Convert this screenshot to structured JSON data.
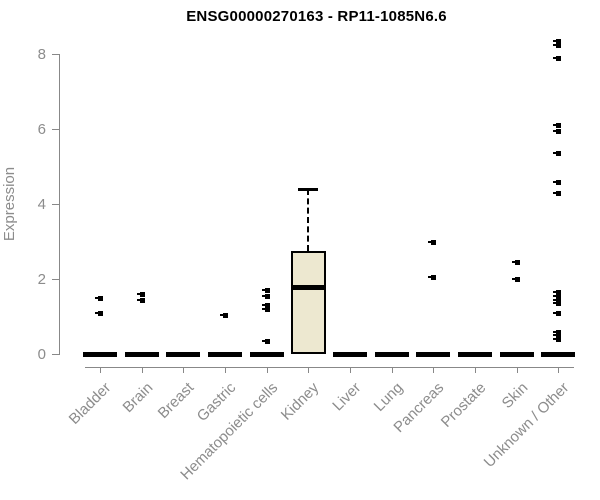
{
  "window": {
    "background": "#ffffff"
  },
  "chart_data": {
    "type": "boxplot",
    "title": "ENSG00000270163 - RP11-1085N6.6",
    "xlabel": "",
    "ylabel": "Expression",
    "ylim": [
      0,
      8.4
    ],
    "yticks": [
      0,
      2,
      4,
      6,
      8
    ],
    "grid": false,
    "legend": null,
    "categories": [
      "Bladder",
      "Brain",
      "Breast",
      "Gastric",
      "Hematopoietic cells",
      "Kidney",
      "Liver",
      "Lung",
      "Pancreas",
      "Prostate",
      "Skin",
      "Unknown / Other"
    ],
    "boxes": [
      {
        "category": "Bladder",
        "median": 0,
        "q1": 0,
        "q3": 0,
        "whisker_low": 0,
        "whisker_high": 0,
        "outliers": [
          1.5,
          1.1
        ]
      },
      {
        "category": "Brain",
        "median": 0,
        "q1": 0,
        "q3": 0,
        "whisker_low": 0,
        "whisker_high": 0,
        "outliers": [
          1.6,
          1.45
        ]
      },
      {
        "category": "Breast",
        "median": 0,
        "q1": 0,
        "q3": 0,
        "whisker_low": 0,
        "whisker_high": 0,
        "outliers": []
      },
      {
        "category": "Gastric",
        "median": 0,
        "q1": 0,
        "q3": 0,
        "whisker_low": 0,
        "whisker_high": 0,
        "outliers": [
          1.05
        ]
      },
      {
        "category": "Hematopoietic cells",
        "median": 0,
        "q1": 0,
        "q3": 0,
        "whisker_low": 0,
        "whisker_high": 0,
        "outliers": [
          1.7,
          1.55,
          1.3,
          1.2,
          0.35
        ]
      },
      {
        "category": "Kidney",
        "median": 1.8,
        "q1": 0,
        "q3": 2.75,
        "whisker_low": 0,
        "whisker_high": 4.4,
        "outliers": []
      },
      {
        "category": "Liver",
        "median": 0,
        "q1": 0,
        "q3": 0,
        "whisker_low": 0,
        "whisker_high": 0,
        "outliers": []
      },
      {
        "category": "Lung",
        "median": 0,
        "q1": 0,
        "q3": 0,
        "whisker_low": 0,
        "whisker_high": 0,
        "outliers": []
      },
      {
        "category": "Pancreas",
        "median": 0,
        "q1": 0,
        "q3": 0,
        "whisker_low": 0,
        "whisker_high": 0,
        "outliers": [
          3.0,
          2.05
        ]
      },
      {
        "category": "Prostate",
        "median": 0,
        "q1": 0,
        "q3": 0,
        "whisker_low": 0,
        "whisker_high": 0,
        "outliers": []
      },
      {
        "category": "Skin",
        "median": 0,
        "q1": 0,
        "q3": 0,
        "whisker_low": 0,
        "whisker_high": 0,
        "outliers": [
          2.45,
          2.0
        ]
      },
      {
        "category": "Unknown / Other",
        "median": 0,
        "q1": 0,
        "q3": 0,
        "whisker_low": 0,
        "whisker_high": 0,
        "outliers": [
          8.35,
          8.25,
          7.9,
          6.1,
          5.95,
          5.35,
          4.6,
          4.3,
          1.65,
          1.55,
          1.45,
          1.35,
          1.1,
          0.6,
          0.5,
          0.4
        ]
      }
    ],
    "colors": {
      "box_fill": "#EDE8D0",
      "box_border": "#000000",
      "median": "#000000",
      "outlier": "#000000",
      "axis": "#888888",
      "tick_label": "#8c8c8c",
      "title": "#000000"
    }
  }
}
